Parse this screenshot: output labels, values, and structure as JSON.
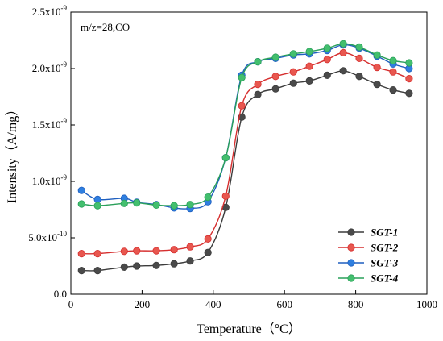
{
  "chart_data": {
    "type": "line",
    "title": "",
    "annotation": "m/z=28,CO",
    "xlabel": "Temperature（°C）",
    "ylabel": "Intensity（A/mg）",
    "xlim": [
      0,
      1000
    ],
    "ylim": [
      0,
      2.5e-09
    ],
    "xticks": [
      0,
      200,
      400,
      600,
      800,
      1000
    ],
    "xtick_labels": [
      "0",
      "200",
      "400",
      "600",
      "800",
      "1000"
    ],
    "yticks": [
      0,
      5e-10,
      1e-09,
      1.5e-09,
      2e-09,
      2.5e-09
    ],
    "ytick_labels": [
      {
        "mant": "0.0",
        "exp": ""
      },
      {
        "mant": "5.0x10",
        "exp": "-10"
      },
      {
        "mant": "1.0x10",
        "exp": "-9"
      },
      {
        "mant": "1.5x10",
        "exp": "-9"
      },
      {
        "mant": "2.0x10",
        "exp": "-9"
      },
      {
        "mant": "2.5x10",
        "exp": "-9"
      }
    ],
    "grid": false,
    "legend_position": "bottom-right",
    "series": [
      {
        "name": "SGT-1",
        "color": "#3c3c3c",
        "fill": "#4a4a4a",
        "x": [
          30,
          75,
          150,
          185,
          240,
          290,
          335,
          385,
          435,
          480,
          525,
          575,
          625,
          670,
          720,
          765,
          810,
          860,
          905,
          950
        ],
        "y": [
          2.1e-10,
          2.1e-10,
          2.4e-10,
          2.5e-10,
          2.55e-10,
          2.7e-10,
          2.95e-10,
          3.7e-10,
          7.7e-10,
          1.57e-09,
          1.77e-09,
          1.82e-09,
          1.87e-09,
          1.89e-09,
          1.94e-09,
          1.98e-09,
          1.93e-09,
          1.86e-09,
          1.81e-09,
          1.78e-09
        ]
      },
      {
        "name": "SGT-2",
        "color": "#d62f2f",
        "fill": "#e8574f",
        "x": [
          30,
          75,
          150,
          185,
          240,
          290,
          335,
          385,
          435,
          480,
          525,
          575,
          625,
          670,
          720,
          765,
          810,
          860,
          905,
          950
        ],
        "y": [
          3.6e-10,
          3.6e-10,
          3.8e-10,
          3.85e-10,
          3.85e-10,
          3.95e-10,
          4.2e-10,
          4.9e-10,
          8.7e-10,
          1.67e-09,
          1.86e-09,
          1.93e-09,
          1.97e-09,
          2.02e-09,
          2.08e-09,
          2.14e-09,
          2.09e-09,
          2.01e-09,
          1.97e-09,
          1.91e-09
        ]
      },
      {
        "name": "SGT-3",
        "color": "#1f5fbf",
        "fill": "#2f7fe0",
        "x": [
          30,
          75,
          150,
          185,
          240,
          290,
          335,
          385,
          435,
          480,
          525,
          575,
          625,
          670,
          720,
          765,
          810,
          860,
          905,
          950
        ],
        "y": [
          9.2e-10,
          8.4e-10,
          8.5e-10,
          8.15e-10,
          7.95e-10,
          7.65e-10,
          7.6e-10,
          8.2e-10,
          1.21e-09,
          1.94e-09,
          2.06e-09,
          2.09e-09,
          2.12e-09,
          2.13e-09,
          2.16e-09,
          2.21e-09,
          2.18e-09,
          2.11e-09,
          2.04e-09,
          2e-09
        ]
      },
      {
        "name": "SGT-4",
        "color": "#2aa05a",
        "fill": "#43bf6e",
        "x": [
          30,
          75,
          150,
          185,
          240,
          290,
          335,
          385,
          435,
          480,
          525,
          575,
          625,
          670,
          720,
          765,
          810,
          860,
          905,
          950
        ],
        "y": [
          8e-10,
          7.85e-10,
          8.05e-10,
          8.1e-10,
          7.9e-10,
          7.85e-10,
          7.95e-10,
          8.6e-10,
          1.21e-09,
          1.92e-09,
          2.06e-09,
          2.1e-09,
          2.13e-09,
          2.15e-09,
          2.18e-09,
          2.22e-09,
          2.19e-09,
          2.12e-09,
          2.07e-09,
          2.05e-09
        ]
      }
    ]
  }
}
